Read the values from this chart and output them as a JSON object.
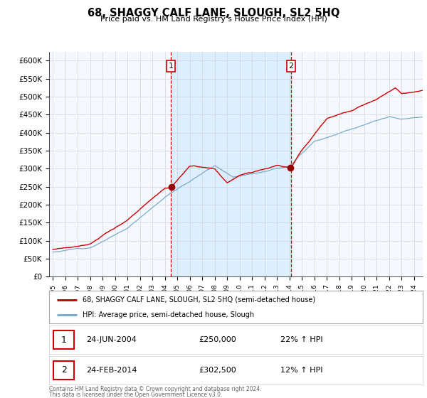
{
  "title": "68, SHAGGY CALF LANE, SLOUGH, SL2 5HQ",
  "subtitle": "Price paid vs. HM Land Registry's House Price Index (HPI)",
  "red_line_color": "#cc0000",
  "blue_line_color": "#7aadcc",
  "shade_color": "#ddeeff",
  "dashed_line_color": "#cc0000",
  "marker_color": "#990000",
  "sale1_year": 2004.47,
  "sale1_price": 250000,
  "sale1_label": "1",
  "sale1_date": "24-JUN-2004",
  "sale1_price_str": "£250,000",
  "sale1_hpi": "22% ↑ HPI",
  "sale2_year": 2014.12,
  "sale2_price": 302500,
  "sale2_label": "2",
  "sale2_date": "24-FEB-2014",
  "sale2_price_str": "£302,500",
  "sale2_hpi": "12% ↑ HPI",
  "legend_entry1": "68, SHAGGY CALF LANE, SLOUGH, SL2 5HQ (semi-detached house)",
  "legend_entry2": "HPI: Average price, semi-detached house, Slough",
  "footnote_line1": "Contains HM Land Registry data © Crown copyright and database right 2024.",
  "footnote_line2": "This data is licensed under the Open Government Licence v3.0.",
  "background_color": "#ffffff",
  "plot_bg_color": "#f5f8ff"
}
